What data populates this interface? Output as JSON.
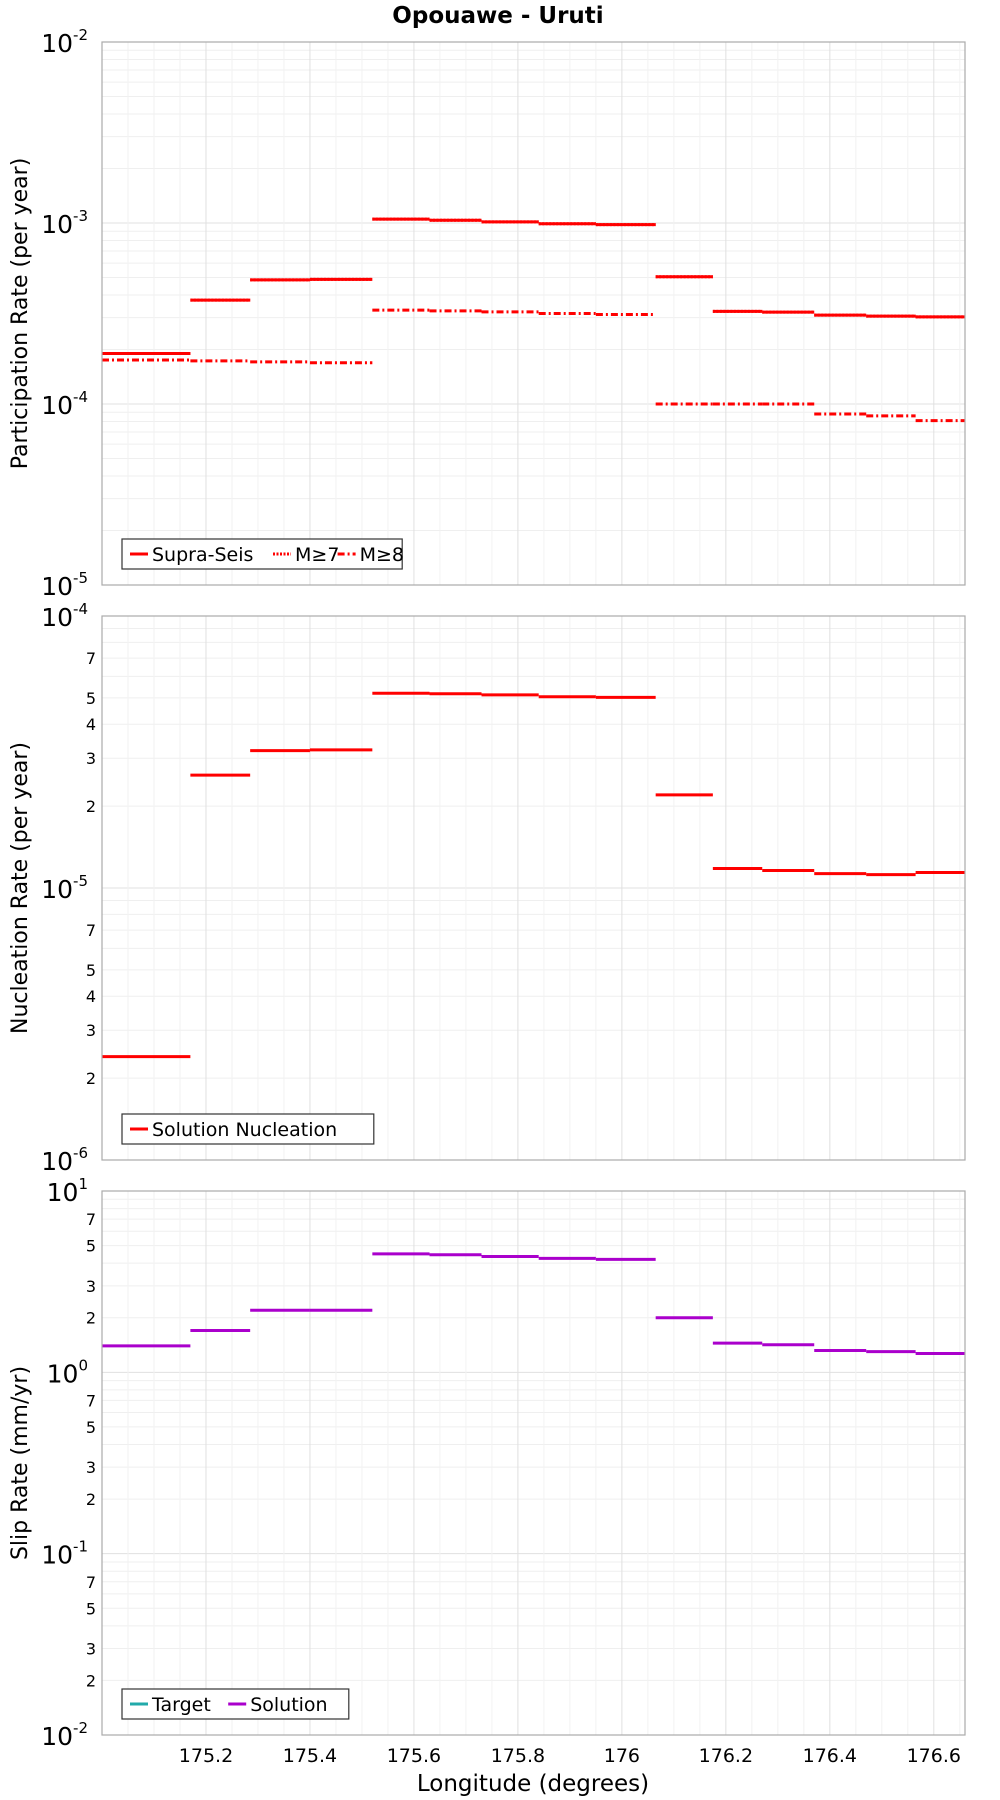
{
  "title": "Opouawe - Uruti",
  "xlabel": "Longitude (degrees)",
  "x_ticks": [
    {
      "value": 175.2,
      "label": "175.2"
    },
    {
      "value": 175.4,
      "label": "175.4"
    },
    {
      "value": 175.6,
      "label": "175.6"
    },
    {
      "value": 175.8,
      "label": "175.8"
    },
    {
      "value": 176.0,
      "label": "176"
    },
    {
      "value": 176.2,
      "label": "176.2"
    },
    {
      "value": 176.4,
      "label": "176.4"
    },
    {
      "value": 176.6,
      "label": "176.6"
    }
  ],
  "colors": {
    "red": "#ff0000",
    "purple": "#aa00cc",
    "teal": "#22aaaa",
    "grid": "#e6e6e6",
    "axis": "#aaaaaa"
  },
  "chart_data": [
    {
      "type": "line",
      "ylabel": "Participation Rate (per year)",
      "yscale": "log",
      "ylim": [
        1e-05,
        0.01
      ],
      "xlim": [
        175.0,
        176.66
      ],
      "major_ticks": [
        {
          "value": 0.01,
          "base": "10",
          "exp": "-2"
        },
        {
          "value": 0.001,
          "base": "10",
          "exp": "-3"
        },
        {
          "value": 0.0001,
          "base": "10",
          "exp": "-4"
        },
        {
          "value": 1e-05,
          "base": "10",
          "exp": "-5"
        }
      ],
      "minor_labels": [],
      "legend": {
        "placement": "bottom-left"
      },
      "series": [
        {
          "name": "Supra-Seis",
          "style": "solid",
          "color": "#ff0000",
          "segments": [
            {
              "x0": 175.0,
              "x1": 175.17,
              "y": 0.00019
            },
            {
              "x0": 175.17,
              "x1": 175.285,
              "y": 0.000375
            },
            {
              "x0": 175.285,
              "x1": 175.4,
              "y": 0.000485
            },
            {
              "x0": 175.4,
              "x1": 175.52,
              "y": 0.000488
            },
            {
              "x0": 175.52,
              "x1": 175.63,
              "y": 0.00105
            },
            {
              "x0": 175.63,
              "x1": 175.73,
              "y": 0.001035
            },
            {
              "x0": 175.73,
              "x1": 175.84,
              "y": 0.001015
            },
            {
              "x0": 175.84,
              "x1": 175.95,
              "y": 0.00099
            },
            {
              "x0": 175.95,
              "x1": 176.065,
              "y": 0.00098
            },
            {
              "x0": 176.065,
              "x1": 176.175,
              "y": 0.000505
            },
            {
              "x0": 176.175,
              "x1": 176.27,
              "y": 0.000325
            },
            {
              "x0": 176.27,
              "x1": 176.37,
              "y": 0.000322
            },
            {
              "x0": 176.37,
              "x1": 176.47,
              "y": 0.00031
            },
            {
              "x0": 176.47,
              "x1": 176.565,
              "y": 0.000306
            },
            {
              "x0": 176.565,
              "x1": 176.66,
              "y": 0.000303
            }
          ]
        },
        {
          "name": "M≥7",
          "style": "dotted",
          "color": "#ff0000",
          "segments": [
            {
              "x0": 175.0,
              "x1": 175.17,
              "y": 0.00019
            },
            {
              "x0": 175.17,
              "x1": 175.285,
              "y": 0.000375
            },
            {
              "x0": 175.285,
              "x1": 175.4,
              "y": 0.000485
            },
            {
              "x0": 175.4,
              "x1": 175.52,
              "y": 0.000488
            },
            {
              "x0": 175.52,
              "x1": 175.63,
              "y": 0.00105
            },
            {
              "x0": 175.63,
              "x1": 175.73,
              "y": 0.001035
            },
            {
              "x0": 175.73,
              "x1": 175.84,
              "y": 0.001015
            },
            {
              "x0": 175.84,
              "x1": 175.95,
              "y": 0.00099
            },
            {
              "x0": 175.95,
              "x1": 176.065,
              "y": 0.00098
            },
            {
              "x0": 176.065,
              "x1": 176.175,
              "y": 0.000505
            },
            {
              "x0": 176.175,
              "x1": 176.27,
              "y": 0.000325
            },
            {
              "x0": 176.27,
              "x1": 176.37,
              "y": 0.000322
            },
            {
              "x0": 176.37,
              "x1": 176.47,
              "y": 0.00031
            },
            {
              "x0": 176.47,
              "x1": 176.565,
              "y": 0.000306
            },
            {
              "x0": 176.565,
              "x1": 176.66,
              "y": 0.000303
            }
          ]
        },
        {
          "name": "M≥8",
          "style": "dashdot",
          "color": "#ff0000",
          "segments": [
            {
              "x0": 175.0,
              "x1": 175.17,
              "y": 0.000175
            },
            {
              "x0": 175.17,
              "x1": 175.285,
              "y": 0.000173
            },
            {
              "x0": 175.285,
              "x1": 175.4,
              "y": 0.000171
            },
            {
              "x0": 175.4,
              "x1": 175.52,
              "y": 0.000169
            },
            {
              "x0": 175.52,
              "x1": 175.63,
              "y": 0.00033
            },
            {
              "x0": 175.63,
              "x1": 175.73,
              "y": 0.000327
            },
            {
              "x0": 175.73,
              "x1": 175.84,
              "y": 0.000323
            },
            {
              "x0": 175.84,
              "x1": 175.95,
              "y": 0.000316
            },
            {
              "x0": 175.95,
              "x1": 176.065,
              "y": 0.000312
            },
            {
              "x0": 176.065,
              "x1": 176.175,
              "y": 0.0001
            },
            {
              "x0": 176.175,
              "x1": 176.27,
              "y": 0.0001
            },
            {
              "x0": 176.27,
              "x1": 176.37,
              "y": 0.0001
            },
            {
              "x0": 176.37,
              "x1": 176.47,
              "y": 8.8e-05
            },
            {
              "x0": 176.47,
              "x1": 176.565,
              "y": 8.6e-05
            },
            {
              "x0": 176.565,
              "x1": 176.66,
              "y": 8.1e-05
            }
          ]
        }
      ]
    },
    {
      "type": "line",
      "ylabel": "Nucleation Rate (per year)",
      "yscale": "log",
      "ylim": [
        1e-06,
        0.0001
      ],
      "xlim": [
        175.0,
        176.66
      ],
      "major_ticks": [
        {
          "value": 0.0001,
          "base": "10",
          "exp": "-4"
        },
        {
          "value": 1e-05,
          "base": "10",
          "exp": "-5"
        },
        {
          "value": 1e-06,
          "base": "10",
          "exp": "-6"
        }
      ],
      "minor_labels": [
        {
          "value": 7e-05,
          "label": "7"
        },
        {
          "value": 5e-05,
          "label": "5"
        },
        {
          "value": 4e-05,
          "label": "4"
        },
        {
          "value": 3e-05,
          "label": "3"
        },
        {
          "value": 2e-05,
          "label": "2"
        },
        {
          "value": 7e-06,
          "label": "7"
        },
        {
          "value": 5e-06,
          "label": "5"
        },
        {
          "value": 4e-06,
          "label": "4"
        },
        {
          "value": 3e-06,
          "label": "3"
        },
        {
          "value": 2e-06,
          "label": "2"
        }
      ],
      "legend": {
        "placement": "bottom-left"
      },
      "series": [
        {
          "name": "Solution Nucleation",
          "style": "solid",
          "color": "#ff0000",
          "segments": [
            {
              "x0": 175.0,
              "x1": 175.17,
              "y": 2.4e-06
            },
            {
              "x0": 175.17,
              "x1": 175.285,
              "y": 2.6e-05
            },
            {
              "x0": 175.285,
              "x1": 175.4,
              "y": 3.2e-05
            },
            {
              "x0": 175.4,
              "x1": 175.52,
              "y": 3.22e-05
            },
            {
              "x0": 175.52,
              "x1": 175.63,
              "y": 5.2e-05
            },
            {
              "x0": 175.63,
              "x1": 175.73,
              "y": 5.18e-05
            },
            {
              "x0": 175.73,
              "x1": 175.84,
              "y": 5.13e-05
            },
            {
              "x0": 175.84,
              "x1": 175.95,
              "y": 5.05e-05
            },
            {
              "x0": 175.95,
              "x1": 176.065,
              "y": 5.02e-05
            },
            {
              "x0": 176.065,
              "x1": 176.175,
              "y": 2.2e-05
            },
            {
              "x0": 176.175,
              "x1": 176.27,
              "y": 1.18e-05
            },
            {
              "x0": 176.27,
              "x1": 176.37,
              "y": 1.16e-05
            },
            {
              "x0": 176.37,
              "x1": 176.47,
              "y": 1.13e-05
            },
            {
              "x0": 176.47,
              "x1": 176.565,
              "y": 1.12e-05
            },
            {
              "x0": 176.565,
              "x1": 176.66,
              "y": 1.14e-05
            }
          ]
        }
      ]
    },
    {
      "type": "line",
      "ylabel": "Slip Rate (mm/yr)",
      "yscale": "log",
      "ylim": [
        0.01,
        10
      ],
      "xlim": [
        175.0,
        176.66
      ],
      "major_ticks": [
        {
          "value": 10,
          "base": "10",
          "exp": "1"
        },
        {
          "value": 1,
          "base": "10",
          "exp": "0"
        },
        {
          "value": 0.1,
          "base": "10",
          "exp": "-1"
        },
        {
          "value": 0.01,
          "base": "10",
          "exp": "-2"
        }
      ],
      "minor_labels": [
        {
          "value": 7,
          "label": "7"
        },
        {
          "value": 5,
          "label": "5"
        },
        {
          "value": 3,
          "label": "3"
        },
        {
          "value": 2,
          "label": "2"
        },
        {
          "value": 0.7,
          "label": "7"
        },
        {
          "value": 0.5,
          "label": "5"
        },
        {
          "value": 0.3,
          "label": "3"
        },
        {
          "value": 0.2,
          "label": "2"
        },
        {
          "value": 0.07,
          "label": "7"
        },
        {
          "value": 0.05,
          "label": "5"
        },
        {
          "value": 0.03,
          "label": "3"
        },
        {
          "value": 0.02,
          "label": "2"
        }
      ],
      "legend": {
        "placement": "bottom-left"
      },
      "series": [
        {
          "name": "Target",
          "style": "solid",
          "color": "#22aaaa",
          "segments": []
        },
        {
          "name": "Solution",
          "style": "solid",
          "color": "#aa00cc",
          "segments": [
            {
              "x0": 175.0,
              "x1": 175.17,
              "y": 1.4
            },
            {
              "x0": 175.17,
              "x1": 175.285,
              "y": 1.7
            },
            {
              "x0": 175.285,
              "x1": 175.4,
              "y": 2.2
            },
            {
              "x0": 175.4,
              "x1": 175.52,
              "y": 2.2
            },
            {
              "x0": 175.52,
              "x1": 175.63,
              "y": 4.5
            },
            {
              "x0": 175.63,
              "x1": 175.73,
              "y": 4.45
            },
            {
              "x0": 175.73,
              "x1": 175.84,
              "y": 4.35
            },
            {
              "x0": 175.84,
              "x1": 175.95,
              "y": 4.25
            },
            {
              "x0": 175.95,
              "x1": 176.065,
              "y": 4.2
            },
            {
              "x0": 176.065,
              "x1": 176.175,
              "y": 2.0
            },
            {
              "x0": 176.175,
              "x1": 176.27,
              "y": 1.45
            },
            {
              "x0": 176.27,
              "x1": 176.37,
              "y": 1.42
            },
            {
              "x0": 176.37,
              "x1": 176.47,
              "y": 1.32
            },
            {
              "x0": 176.47,
              "x1": 176.565,
              "y": 1.3
            },
            {
              "x0": 176.565,
              "x1": 176.66,
              "y": 1.27
            }
          ]
        }
      ]
    }
  ]
}
